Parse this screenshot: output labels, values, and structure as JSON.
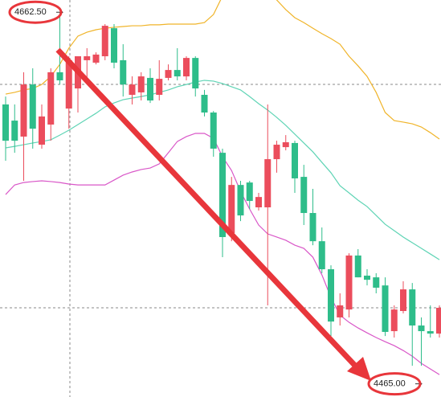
{
  "chart_data": {
    "type": "candlestick",
    "categories": [
      null,
      null,
      null,
      null,
      null,
      null,
      null,
      null,
      null,
      null,
      null,
      null,
      null,
      null,
      null,
      null,
      null,
      null,
      null,
      null,
      null,
      null,
      null,
      null,
      null,
      null,
      null,
      null,
      null,
      null,
      null,
      null,
      null,
      null,
      null,
      null,
      null,
      null,
      null,
      null,
      null,
      null,
      null,
      null,
      null,
      null,
      null,
      null,
      null
    ],
    "open": [
      4613.5,
      4604.9,
      4596.4,
      4624.1,
      4592.1,
      4602.8,
      4630.6,
      4611.3,
      4622.0,
      4637.0,
      4635.7,
      4639.1,
      4654.0,
      4637.0,
      4618.6,
      4619.9,
      4627.6,
      4618.6,
      4627.6,
      4631.8,
      4628.4,
      4638.2,
      4618.6,
      4609.2,
      4587.8,
      4545.1,
      4570.7,
      4572.0,
      4558.8,
      4558.8,
      4584.4,
      4590.8,
      4593.0,
      4575.0,
      4555.8,
      4540.8,
      4525.9,
      4500.3,
      4504.5,
      4533.2,
      4522.5,
      4521.6,
      4517.3,
      4493.0,
      4503.7,
      4515.2,
      4496.0,
      4493.0,
      4491.7
    ],
    "high": [
      4617.7,
      4613.5,
      4630.6,
      4632.7,
      4613.5,
      4632.7,
      4662.5,
      4639.1,
      4639.1,
      4643.4,
      4641.2,
      4656.2,
      4656.2,
      4645.5,
      4628.4,
      4630.6,
      4632.7,
      4637.0,
      4634.8,
      4643.4,
      4639.1,
      4639.1,
      4621.2,
      4610.0,
      4590.0,
      4575.0,
      4572.9,
      4572.9,
      4566.5,
      4613.5,
      4594.2,
      4597.2,
      4594.2,
      4581.4,
      4568.6,
      4548.1,
      4528.0,
      4513.1,
      4534.4,
      4536.6,
      4525.9,
      4523.8,
      4521.6,
      4506.7,
      4519.5,
      4518.6,
      4500.3,
      4506.7,
      4506.7
    ],
    "low": [
      4583.6,
      4587.8,
      4572.9,
      4590.0,
      4590.0,
      4594.2,
      4624.1,
      4600.6,
      4609.2,
      4626.3,
      4634.8,
      4637.0,
      4632.7,
      4617.7,
      4613.5,
      4615.6,
      4614.3,
      4615.6,
      4626.3,
      4626.3,
      4626.3,
      4617.7,
      4607.1,
      4585.7,
      4532.3,
      4540.8,
      4551.5,
      4557.9,
      4557.1,
      4506.7,
      4577.2,
      4589.1,
      4566.5,
      4549.4,
      4538.7,
      4523.8,
      4490.4,
      4496.0,
      4500.3,
      4521.6,
      4517.3,
      4513.1,
      4490.4,
      4489.6,
      4502.4,
      4474.6,
      4474.6,
      4489.6,
      4489.6
    ],
    "close": [
      4594.2,
      4594.2,
      4624.1,
      4600.6,
      4607.1,
      4630.6,
      4626.3,
      4637.0,
      4639.1,
      4639.1,
      4640.0,
      4655.3,
      4635.7,
      4624.1,
      4624.1,
      4628.4,
      4615.6,
      4627.1,
      4631.8,
      4628.4,
      4638.2,
      4622.0,
      4609.2,
      4590.0,
      4543.0,
      4570.7,
      4554.5,
      4562.2,
      4564.3,
      4584.4,
      4592.1,
      4593.4,
      4574.2,
      4555.8,
      4540.8,
      4525.9,
      4498.1,
      4506.7,
      4533.2,
      4521.6,
      4520.3,
      4516.1,
      4492.6,
      4504.5,
      4515.2,
      4496.0,
      4493.0,
      4491.7,
      4505.4
    ],
    "up_color": "#eb4d5c",
    "down_color": "#2ebd8a",
    "overlays": [
      {
        "color": "#f0b429",
        "values": [
          4619.0,
          4619.9,
          4621.2,
          4622.0,
          4624.1,
          4628.4,
          4634.8,
          4643.4,
          4649.8,
          4651.9,
          4653.2,
          4654.0,
          4654.5,
          4654.9,
          4655.3,
          4655.3,
          4655.8,
          4655.8,
          4656.2,
          4656.2,
          4656.2,
          4656.2,
          4657.0,
          4661.3,
          4671.1,
          4675.4,
          4677.5,
          4678.4,
          4677.5,
          4674.1,
          4669.0,
          4663.9,
          4659.6,
          4657.0,
          4654.0,
          4651.1,
          4648.5,
          4645.5,
          4639.1,
          4634.0,
          4628.4,
          4619.9,
          4609.2,
          4604.9,
          4604.1,
          4603.2,
          4601.5,
          4598.5,
          4595.1
        ]
      },
      {
        "color": "#5fd4b5",
        "values": [
          4590.4,
          4591.2,
          4592.1,
          4593.0,
          4593.8,
          4594.7,
          4597.2,
          4599.8,
          4602.8,
          4605.8,
          4608.8,
          4612.2,
          4614.3,
          4616.0,
          4616.9,
          4617.7,
          4618.6,
          4619.9,
          4621.2,
          4622.9,
          4624.1,
          4625.4,
          4626.3,
          4625.9,
          4624.6,
          4622.9,
          4621.2,
          4617.7,
          4613.9,
          4610.5,
          4606.6,
          4602.4,
          4597.7,
          4593.0,
          4588.3,
          4582.7,
          4577.2,
          4570.3,
          4566.5,
          4562.6,
          4559.2,
          4554.5,
          4549.8,
          4546.4,
          4543.0,
          4540.0,
          4537.0,
          4534.0,
          4531.0
        ]
      },
      {
        "color": "#d957c8",
        "values": [
          4565.6,
          4570.7,
          4572.0,
          4572.5,
          4572.9,
          4572.5,
          4572.0,
          4571.2,
          4570.7,
          4570.7,
          4570.7,
          4570.7,
          4573.3,
          4575.9,
          4577.6,
          4578.9,
          4579.7,
          4581.9,
          4587.8,
          4593.8,
          4596.4,
          4598.1,
          4598.1,
          4595.5,
          4585.7,
          4578.4,
          4567.3,
          4557.9,
          4549.4,
          4544.7,
          4543.0,
          4541.3,
          4538.7,
          4537.0,
          4532.3,
          4522.9,
          4510.9,
          4501.5,
          4497.7,
          4494.7,
          4492.1,
          4489.6,
          4487.4,
          4485.3,
          4482.7,
          4479.7,
          4475.9,
          4472.9,
          4469.9
        ]
      }
    ],
    "annotations": [
      {
        "value": 4662.5,
        "label": "4662.50"
      },
      {
        "value": 4465,
        "label": "4465.00"
      }
    ],
    "ylim": [
      4458,
      4669
    ]
  }
}
